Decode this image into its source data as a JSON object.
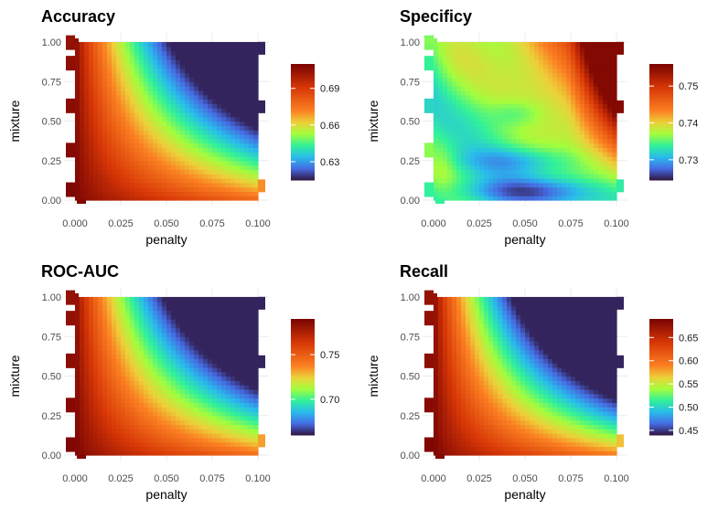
{
  "chart_data": [
    {
      "type": "heatmap",
      "title": "Accuracy",
      "xlabel": "penalty",
      "ylabel": "mixture",
      "x_ticks": [
        "0.000",
        "0.025",
        "0.050",
        "0.075",
        "0.100"
      ],
      "y_ticks": [
        "0.00",
        "0.25",
        "0.50",
        "0.75",
        "1.00"
      ],
      "xlim": [
        0,
        0.1
      ],
      "ylim": [
        0,
        1
      ],
      "legend_ticks": [
        0.63,
        0.66,
        0.69
      ],
      "legend_tick_labels": [
        "0.63",
        "0.66",
        "0.69"
      ],
      "fill_range": [
        0.615,
        0.71
      ],
      "corner_values": {
        "penalty_0_mixture_0": 0.71,
        "penalty_0.1_mixture_0": 0.688,
        "penalty_0_mixture_1": 0.71,
        "penalty_0.1_mixture_1": 0.615
      },
      "legend_placement": "right"
    },
    {
      "type": "heatmap",
      "title": "Specificy",
      "xlabel": "penalty",
      "ylabel": "mixture",
      "x_ticks": [
        "0.000",
        "0.025",
        "0.050",
        "0.075",
        "0.100"
      ],
      "y_ticks": [
        "0.00",
        "0.25",
        "0.50",
        "0.75",
        "1.00"
      ],
      "xlim": [
        0,
        0.1
      ],
      "ylim": [
        0,
        1
      ],
      "legend_ticks": [
        0.73,
        0.74,
        0.75
      ],
      "legend_tick_labels": [
        "0.73",
        "0.74",
        "0.75"
      ],
      "fill_range": [
        0.7245,
        0.756
      ],
      "corner_values": {
        "penalty_0_mixture_0": 0.735,
        "penalty_0.1_mixture_0": 0.726,
        "penalty_0_mixture_1": 0.737,
        "penalty_0.1_mixture_1": 0.756
      },
      "legend_placement": "right"
    },
    {
      "type": "heatmap",
      "title": "ROC-AUC",
      "xlabel": "penalty",
      "ylabel": "mixture",
      "x_ticks": [
        "0.000",
        "0.025",
        "0.050",
        "0.075",
        "0.100"
      ],
      "y_ticks": [
        "0.00",
        "0.25",
        "0.50",
        "0.75",
        "1.00"
      ],
      "xlim": [
        0,
        0.1
      ],
      "ylim": [
        0,
        1
      ],
      "legend_ticks": [
        0.7,
        0.75
      ],
      "legend_tick_labels": [
        "0.70",
        "0.75"
      ],
      "fill_range": [
        0.66,
        0.79
      ],
      "corner_values": {
        "penalty_0_mixture_0": 0.79,
        "penalty_0.1_mixture_0": 0.765,
        "penalty_0_mixture_1": 0.79,
        "penalty_0.1_mixture_1": 0.66
      },
      "legend_placement": "right"
    },
    {
      "type": "heatmap",
      "title": "Recall",
      "xlabel": "penalty",
      "ylabel": "mixture",
      "x_ticks": [
        "0.000",
        "0.025",
        "0.050",
        "0.075",
        "0.100"
      ],
      "y_ticks": [
        "0.00",
        "0.25",
        "0.50",
        "0.75",
        "1.00"
      ],
      "xlim": [
        0,
        0.1
      ],
      "ylim": [
        0,
        1
      ],
      "legend_ticks": [
        0.45,
        0.5,
        0.55,
        0.6,
        0.65
      ],
      "legend_tick_labels": [
        "0.45",
        "0.50",
        "0.55",
        "0.60",
        "0.65"
      ],
      "fill_range": [
        0.44,
        0.69
      ],
      "corner_values": {
        "penalty_0_mixture_0": 0.69,
        "penalty_0.1_mixture_0": 0.645,
        "penalty_0_mixture_1": 0.69,
        "penalty_0.1_mixture_1": 0.44
      },
      "legend_placement": "right"
    }
  ]
}
